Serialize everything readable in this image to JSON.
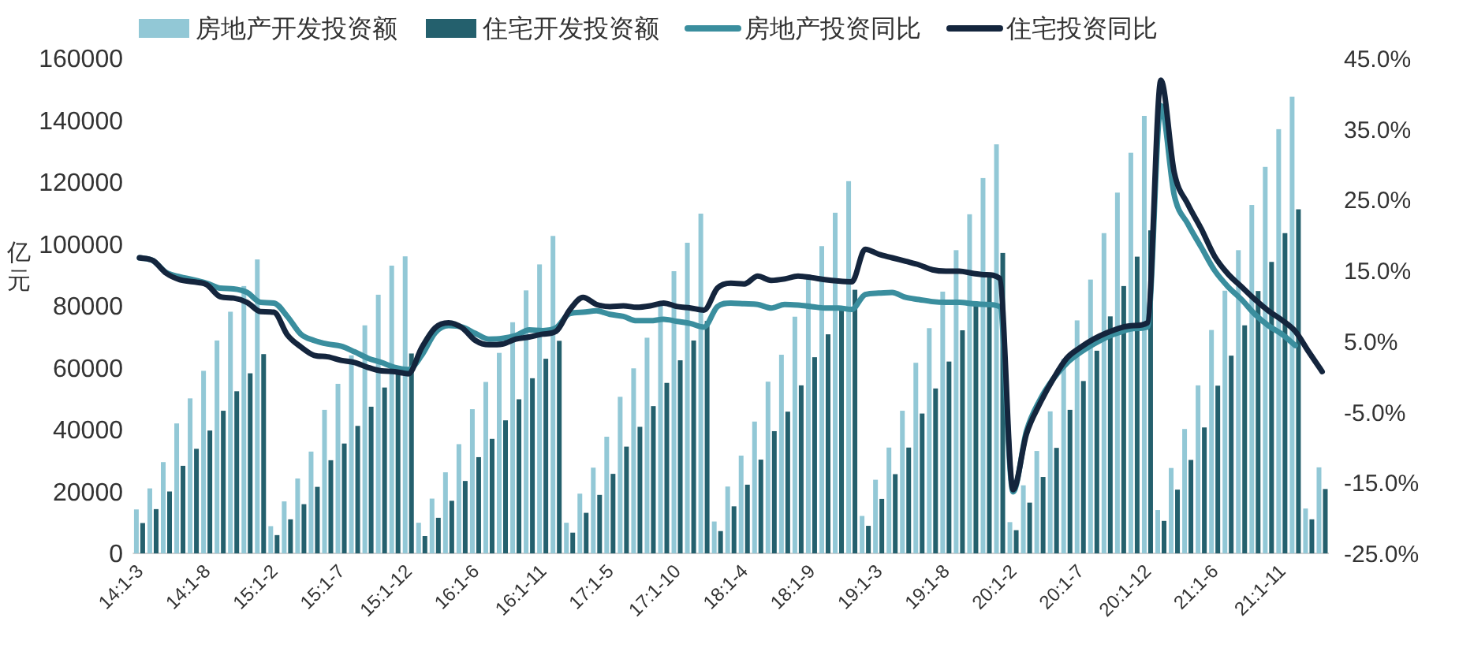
{
  "chart_data": {
    "type": "bar",
    "ylabel": "亿元",
    "legend": "top",
    "categories": [
      "14:1-3",
      null,
      null,
      null,
      null,
      "14:1-8",
      null,
      null,
      null,
      null,
      "15:1-2",
      null,
      null,
      null,
      null,
      "15:1-7",
      null,
      null,
      null,
      null,
      "15:1-12",
      null,
      null,
      null,
      null,
      "16:1-6",
      null,
      null,
      null,
      null,
      "16:1-11",
      null,
      null,
      null,
      null,
      "17:1-5",
      null,
      null,
      null,
      null,
      "17:1-10",
      null,
      null,
      null,
      null,
      "18:1-4",
      null,
      null,
      null,
      null,
      "18:1-9",
      null,
      null,
      null,
      null,
      "19:1-3",
      null,
      null,
      null,
      null,
      "19:1-8",
      null,
      null,
      null,
      null,
      "20:1-2",
      null,
      null,
      null,
      null,
      "20:1-7",
      null,
      null,
      null,
      null,
      "20:1-12",
      null,
      null,
      null,
      null,
      "21:1-6",
      null,
      null,
      null,
      null,
      "21:1-11",
      null,
      null,
      null
    ],
    "ylim": [
      0,
      160000
    ],
    "yticks": [
      0,
      20000,
      40000,
      60000,
      80000,
      100000,
      120000,
      140000,
      160000
    ],
    "y2lim": [
      -25,
      45
    ],
    "y2ticks": [
      {
        "value": -25,
        "label": "-25.0%"
      },
      {
        "value": -15,
        "label": "-15.0%"
      },
      {
        "value": -5,
        "label": "-5.0%"
      },
      {
        "value": 5,
        "label": "5.0%"
      },
      {
        "value": 15,
        "label": "15.0%"
      },
      {
        "value": 25,
        "label": "25.0%"
      },
      {
        "value": 35,
        "label": "35.0%"
      },
      {
        "value": 45,
        "label": "45.0%"
      }
    ],
    "series": [
      {
        "name": "房地产开发投资额",
        "color": "#92c8d6",
        "values": [
          14200,
          21000,
          29500,
          42000,
          50100,
          59000,
          68800,
          78100,
          86400,
          95000,
          8800,
          16800,
          24200,
          32900,
          46400,
          54800,
          64000,
          73700,
          83600,
          93000,
          96000,
          9900,
          17700,
          26200,
          35300,
          46600,
          55400,
          64800,
          74700,
          85000,
          93400,
          102600,
          9900,
          19300,
          27700,
          37700,
          50600,
          59800,
          69700,
          80600,
          91200,
          100400,
          109800,
          10300,
          21600,
          31600,
          42600,
          55500,
          64200,
          76500,
          88900,
          99300,
          110100,
          120300,
          12100,
          23800,
          34200,
          46100,
          61600,
          72800,
          84600,
          98000,
          109600,
          121300,
          132200,
          10100,
          22000,
          33100,
          45900,
          62800,
          75300,
          88500,
          103500,
          116600,
          129500,
          141400,
          14000,
          27600,
          40200,
          54300,
          72200,
          84900,
          98000,
          112600,
          124900,
          137100,
          147600,
          14500,
          27800
        ]
      },
      {
        "name": "住宅开发投资额",
        "color": "#24606d",
        "values": [
          9800,
          14300,
          20000,
          28300,
          33800,
          39700,
          46100,
          52400,
          58200,
          64400,
          5900,
          11000,
          15900,
          21500,
          30100,
          35500,
          41200,
          47400,
          53600,
          59600,
          64600,
          5600,
          11500,
          17000,
          23400,
          31100,
          37000,
          43000,
          49800,
          56600,
          62900,
          68700,
          6700,
          13100,
          18900,
          25700,
          34500,
          40900,
          47600,
          55100,
          62400,
          68800,
          75100,
          7200,
          15200,
          22200,
          30300,
          39500,
          45800,
          54300,
          63400,
          70800,
          78500,
          85200,
          8900,
          17600,
          25600,
          34200,
          45200,
          53300,
          62000,
          72100,
          80800,
          89500,
          97100,
          7500,
          16400,
          24700,
          34100,
          46400,
          55700,
          65500,
          76600,
          86400,
          95900,
          104400,
          10500,
          20600,
          30200,
          40700,
          54200,
          63900,
          73700,
          84800,
          94200,
          103500,
          111200,
          11000,
          20800
        ]
      },
      {
        "name": "房地产投资同比",
        "type": "line",
        "axis": "y2",
        "color": "#3a8e9e",
        "values": [
          16.8,
          16.4,
          14.7,
          14.1,
          13.7,
          13.2,
          12.5,
          12.4,
          11.9,
          10.5,
          10.4,
          8.5,
          6.0,
          5.1,
          4.6,
          4.3,
          3.5,
          2.6,
          2.0,
          1.3,
          1.0,
          3.0,
          6.2,
          7.2,
          7.0,
          6.1,
          5.3,
          5.4,
          5.8,
          6.6,
          6.5,
          6.9,
          8.9,
          9.1,
          9.3,
          8.8,
          8.5,
          7.9,
          7.9,
          8.1,
          7.8,
          7.5,
          7.0,
          9.9,
          10.4,
          10.3,
          10.2,
          9.7,
          10.2,
          10.1,
          9.9,
          9.7,
          9.7,
          9.5,
          11.6,
          11.8,
          11.9,
          11.2,
          10.9,
          10.6,
          10.5,
          10.5,
          10.3,
          10.2,
          9.9,
          -16.3,
          -7.7,
          -3.3,
          -0.3,
          1.9,
          3.4,
          4.6,
          5.6,
          6.3,
          6.8,
          7.0,
          38.3,
          25.6,
          21.6,
          18.3,
          15.0,
          12.7,
          10.9,
          8.8,
          7.2,
          6.0,
          4.4,
          null,
          null
        ]
      },
      {
        "name": "住宅投资同比",
        "type": "line",
        "axis": "y2",
        "color": "#14253d",
        "values": [
          16.8,
          16.4,
          14.6,
          13.7,
          13.4,
          13.0,
          11.3,
          11.1,
          10.5,
          9.2,
          9.1,
          5.9,
          4.2,
          3.0,
          2.8,
          2.3,
          2.0,
          1.3,
          0.8,
          0.7,
          0.4,
          4.1,
          6.9,
          7.6,
          6.9,
          5.1,
          4.5,
          4.6,
          5.3,
          5.6,
          6.0,
          6.4,
          9.4,
          11.2,
          10.2,
          9.9,
          10.0,
          9.8,
          10.0,
          10.4,
          9.9,
          9.7,
          9.4,
          12.5,
          13.2,
          13.1,
          14.2,
          13.6,
          13.8,
          14.2,
          14.0,
          13.7,
          13.5,
          13.4,
          18.0,
          17.3,
          16.8,
          16.3,
          15.8,
          15.1,
          14.9,
          14.9,
          14.6,
          14.4,
          13.9,
          -16.0,
          -8.1,
          -3.8,
          -0.3,
          2.6,
          4.1,
          5.3,
          6.2,
          6.9,
          7.2,
          7.6,
          41.9,
          28.8,
          24.4,
          20.9,
          17.0,
          14.5,
          12.7,
          10.9,
          9.3,
          8.0,
          6.4,
          3.5,
          0.7
        ]
      }
    ]
  }
}
